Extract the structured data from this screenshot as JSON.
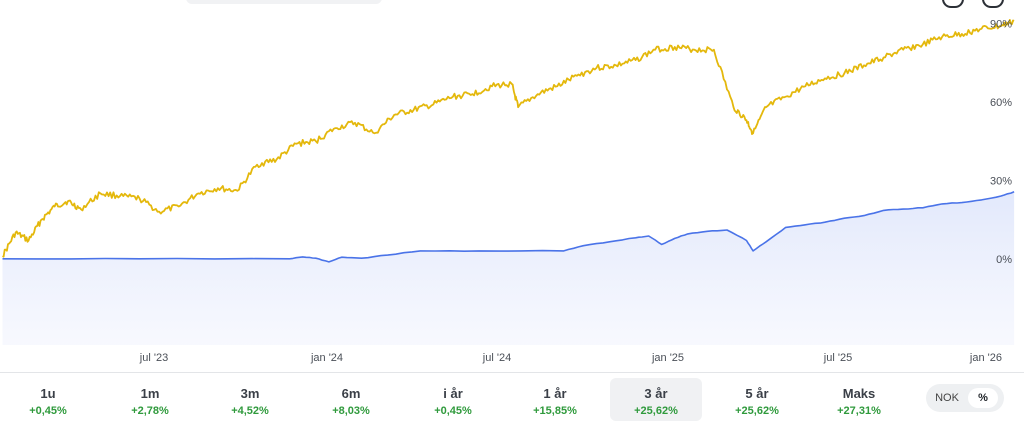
{
  "chart_data": {
    "type": "line",
    "x_ticks": [
      "jul '23",
      "jan '24",
      "jul '24",
      "jan '25",
      "jul '25",
      "jan '26"
    ],
    "y_ticks": [
      "90%",
      "60%",
      "30%",
      "0%"
    ],
    "ylim": [
      -33,
      99
    ],
    "grid": false,
    "series": [
      {
        "color": "#e4b80c",
        "x": [
          "2023-01-27",
          "2023-02-10",
          "2023-02-24",
          "2023-03-10",
          "2023-03-24",
          "2023-04-07",
          "2023-04-21",
          "2023-05-12",
          "2023-06-02",
          "2023-06-23",
          "2023-07-14",
          "2023-08-04",
          "2023-08-25",
          "2023-09-15",
          "2023-10-06",
          "2023-10-27",
          "2023-11-17",
          "2023-12-08",
          "2023-12-29",
          "2024-01-19",
          "2024-02-09",
          "2024-03-01",
          "2024-03-22",
          "2024-04-12",
          "2024-05-03",
          "2024-05-24",
          "2024-06-14",
          "2024-07-05",
          "2024-07-26",
          "2024-08-02",
          "2024-08-23",
          "2024-09-13",
          "2024-10-04",
          "2024-10-25",
          "2024-11-15",
          "2024-12-06",
          "2024-12-27",
          "2025-01-17",
          "2025-02-07",
          "2025-02-28",
          "2025-03-21",
          "2025-04-04",
          "2025-04-11",
          "2025-04-25",
          "2025-05-16",
          "2025-06-06",
          "2025-06-27",
          "2025-07-18",
          "2025-08-08",
          "2025-08-29",
          "2025-09-19",
          "2025-10-10",
          "2025-10-31",
          "2025-11-21",
          "2025-12-12",
          "2026-01-02",
          "2026-01-16"
        ],
        "y": [
          1,
          10,
          7,
          15,
          20,
          22,
          19,
          25,
          24,
          23,
          18,
          20,
          25,
          27,
          26,
          36,
          38,
          44,
          45,
          50,
          52,
          48,
          55,
          57,
          59,
          62,
          63,
          66,
          67,
          58,
          63,
          66,
          70,
          73,
          74,
          76,
          80,
          81,
          80,
          80,
          58,
          53,
          48,
          58,
          62,
          66,
          69,
          71,
          74,
          77,
          80,
          82,
          85,
          86,
          88,
          89,
          91
        ]
      },
      {
        "color": "#4a73e8",
        "x": [
          "2023-01-27",
          "2023-06-23",
          "2023-12-01",
          "2023-12-15",
          "2023-12-29",
          "2024-01-12",
          "2024-01-26",
          "2024-02-16",
          "2024-03-15",
          "2024-04-19",
          "2024-06-21",
          "2024-09-20",
          "2024-10-11",
          "2024-11-08",
          "2024-12-06",
          "2024-12-20",
          "2025-01-03",
          "2025-01-17",
          "2025-01-31",
          "2025-02-21",
          "2025-03-14",
          "2025-04-04",
          "2025-04-11",
          "2025-04-25",
          "2025-05-16",
          "2025-06-06",
          "2025-06-27",
          "2025-07-18",
          "2025-08-08",
          "2025-08-29",
          "2025-09-19",
          "2025-10-10",
          "2025-10-31",
          "2025-11-21",
          "2025-12-12",
          "2026-01-02",
          "2026-01-16"
        ],
        "y": [
          0,
          0,
          0,
          0.7,
          0.2,
          -1.2,
          0.6,
          0.2,
          1.4,
          3.0,
          3.0,
          3.0,
          5.0,
          6.5,
          8.0,
          8.7,
          5.5,
          7.8,
          9.5,
          10.5,
          11.0,
          7.0,
          3.0,
          6.5,
          12.0,
          13.0,
          14.0,
          15.5,
          16.5,
          18.5,
          19.0,
          19.5,
          21.0,
          21.5,
          22.5,
          24.0,
          25.6
        ]
      }
    ]
  },
  "periods": [
    {
      "label": "1u",
      "change": "+0,45%"
    },
    {
      "label": "1m",
      "change": "+2,78%"
    },
    {
      "label": "3m",
      "change": "+4,52%"
    },
    {
      "label": "6m",
      "change": "+8,03%"
    },
    {
      "label": "i år",
      "change": "+0,45%"
    },
    {
      "label": "1 år",
      "change": "+15,85%"
    },
    {
      "label": "3 år",
      "change": "+25,62%"
    },
    {
      "label": "5 år",
      "change": "+25,62%"
    },
    {
      "label": "Maks",
      "change": "+27,31%"
    }
  ],
  "toggle": {
    "nok": "NOK",
    "percent": "%"
  }
}
